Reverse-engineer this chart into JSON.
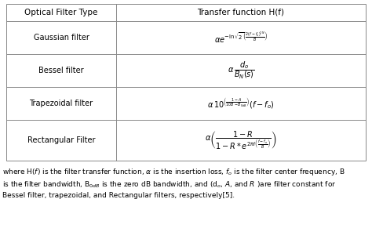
{
  "table_headers": [
    "Optical Filter Type",
    "Transfer function H(f)"
  ],
  "row_labels": [
    "Gaussian filter",
    "Bessel filter",
    "Trapezoidal filter",
    "Rectangular Filter"
  ],
  "gaussian_formula": "$\\alpha e^{-\\ln\\sqrt{2}\\left(\\frac{2(f-f_o)^{2N}}{B}\\right)}$",
  "bessel_formula": "$\\alpha\\,\\dfrac{d_o}{B_N(s)}$",
  "trapezoidal_formula": "$\\alpha\\,10^{\\left(\\frac{1-A}{10B-B_{0dB}}\\right)}(f-f_o)$",
  "rectangular_formula": "$\\alpha\\left(\\dfrac{1-R}{1-R*e^{2\\pi i\\left(\\frac{f-f_o}{B}\\right)}}\\right)$",
  "bg_color": "#ffffff",
  "border_color": "#888888",
  "text_color": "#000000",
  "header_font_size": 7.5,
  "label_font_size": 7.0,
  "formula_font_size": 7.0,
  "caption_font_size": 6.5,
  "caption_lines": [
    "where H($f$) is the filter transfer function, $\\alpha$ is the insertion loss, $f_o$ is the filter center frequency, B",
    "is the filter bandwidth, B$_{0dB}$ is the zero dB bandwidth, and (d$_o$, $A$, and $R$ )are filter constant for",
    "Bessel filter, trapezoidal, and Rectangular filters, respectively[5]."
  ]
}
